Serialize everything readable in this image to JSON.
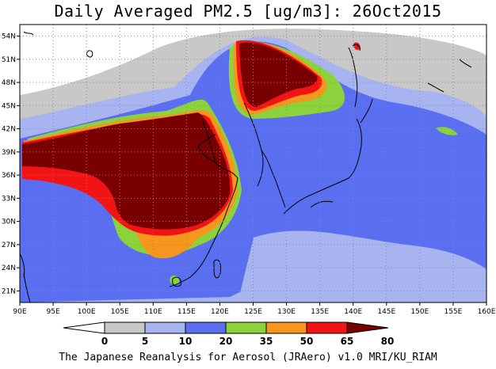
{
  "title": "Daily Averaged PM2.5 [ug/m3]: 26Oct2015",
  "footer": "The Japanese Reanalysis for Aerosol (JRAero) v1.0 MRI/KU_RIAM",
  "map": {
    "lon_range": [
      90,
      160
    ],
    "lat_range": [
      19.5,
      55.5
    ],
    "x_ticks": [
      "90E",
      "95E",
      "100E",
      "105E",
      "110E",
      "115E",
      "120E",
      "125E",
      "130E",
      "135E",
      "140E",
      "145E",
      "150E",
      "155E",
      "160E"
    ],
    "y_ticks": [
      "21N",
      "24N",
      "27N",
      "30N",
      "33N",
      "36N",
      "39N",
      "42N",
      "45N",
      "48N",
      "51N",
      "54N"
    ],
    "grid": true
  },
  "colorbar": {
    "levels": [
      "0",
      "5",
      "10",
      "20",
      "35",
      "50",
      "65",
      "80"
    ],
    "colors": [
      "#ffffff",
      "#c8c8c8",
      "#a8b4f0",
      "#5a6ef0",
      "#8cd23c",
      "#f5961e",
      "#f01414",
      "#780000"
    ]
  }
}
